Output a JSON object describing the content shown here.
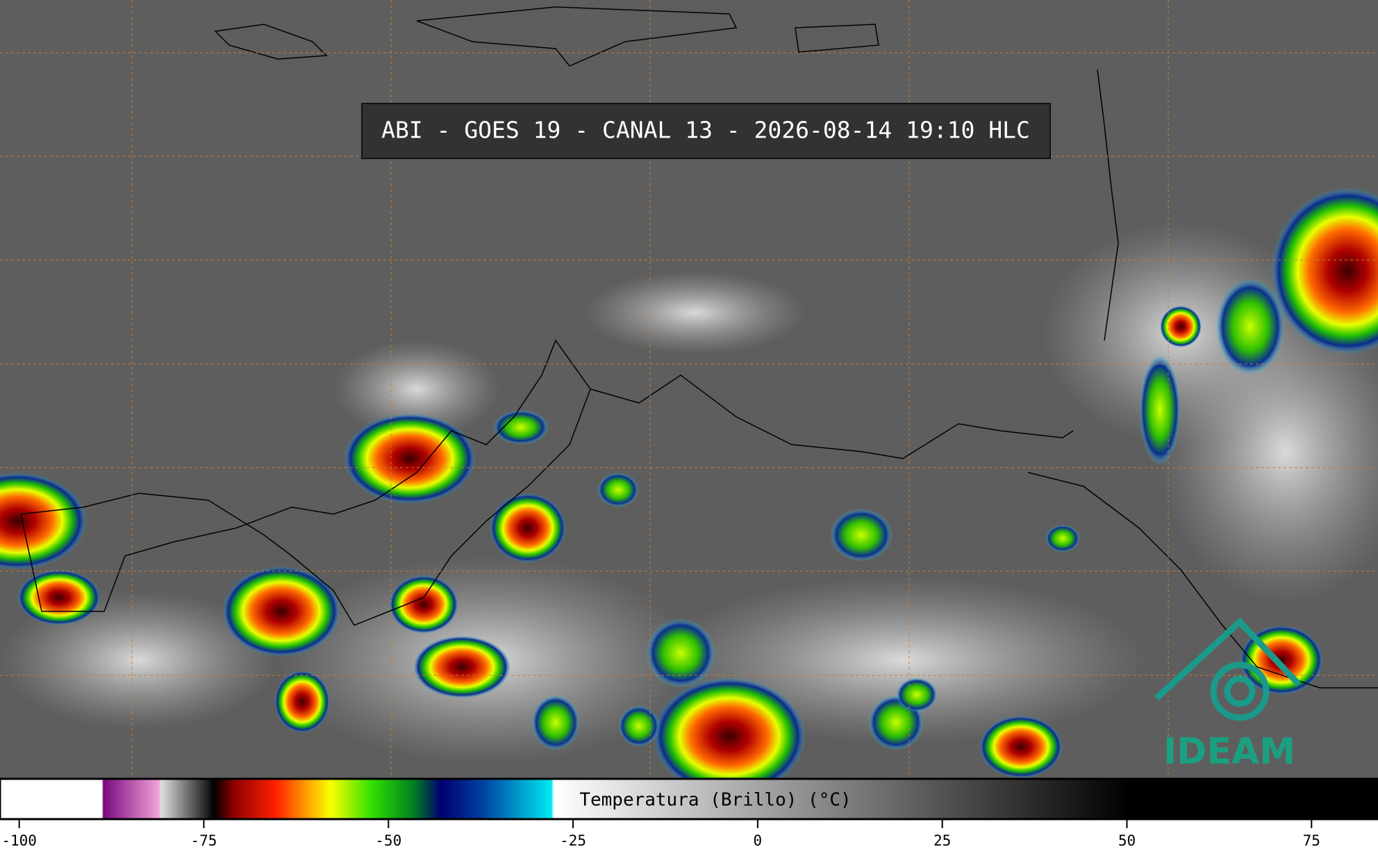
{
  "title": "ABI - GOES 19 - CANAL 13 - 2026-08-14 19:10 HLC",
  "logo": "IDEAM",
  "colorbar": {
    "label": "Temperatura (Brillo) (°C)",
    "xlim": [
      -102.6,
      84
    ],
    "xticks": [
      -100,
      -75,
      -50,
      -25,
      0,
      25,
      50,
      75
    ]
  }
}
